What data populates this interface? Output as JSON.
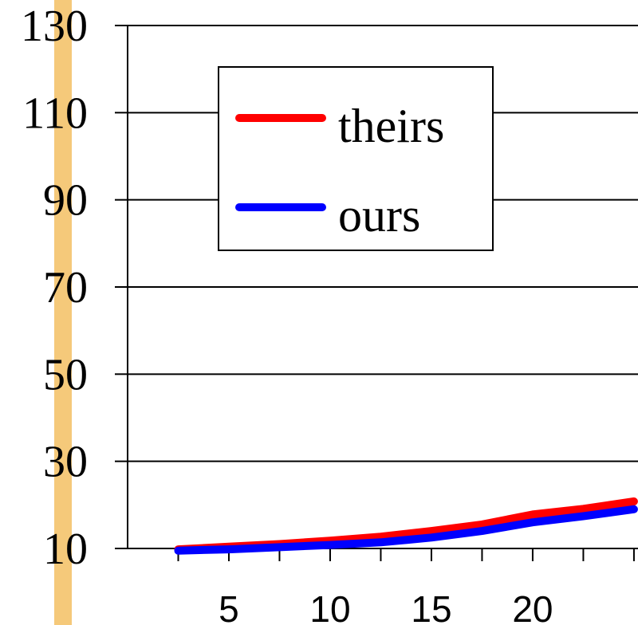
{
  "chart_data": {
    "type": "line",
    "title": "",
    "xlabel": "",
    "ylabel": "",
    "xlim": [
      0,
      25.2
    ],
    "ylim": [
      10,
      130
    ],
    "yticks": [
      130,
      110,
      90,
      70,
      50,
      30,
      10
    ],
    "xticks": [
      5,
      10,
      15,
      20
    ],
    "grid": "horizontal",
    "legend_position": "upper-left",
    "series": [
      {
        "name": "theirs",
        "color": "#ff0000",
        "x": [
          2.5,
          5,
          7.5,
          10,
          12.5,
          15,
          17.5,
          20,
          22.5,
          25
        ],
        "y": [
          9.8,
          10.4,
          11.0,
          11.8,
          12.7,
          14.0,
          15.5,
          17.8,
          19.1,
          20.8
        ]
      },
      {
        "name": "ours",
        "color": "#0000ff",
        "x": [
          2.5,
          5,
          7.5,
          10,
          12.5,
          15,
          17.5,
          20,
          22.5,
          25
        ],
        "y": [
          9.5,
          9.8,
          10.3,
          10.8,
          11.4,
          12.5,
          14.0,
          16.0,
          17.4,
          19.0
        ]
      }
    ]
  },
  "decor": {
    "left_strip_color": "#f5c97a"
  }
}
